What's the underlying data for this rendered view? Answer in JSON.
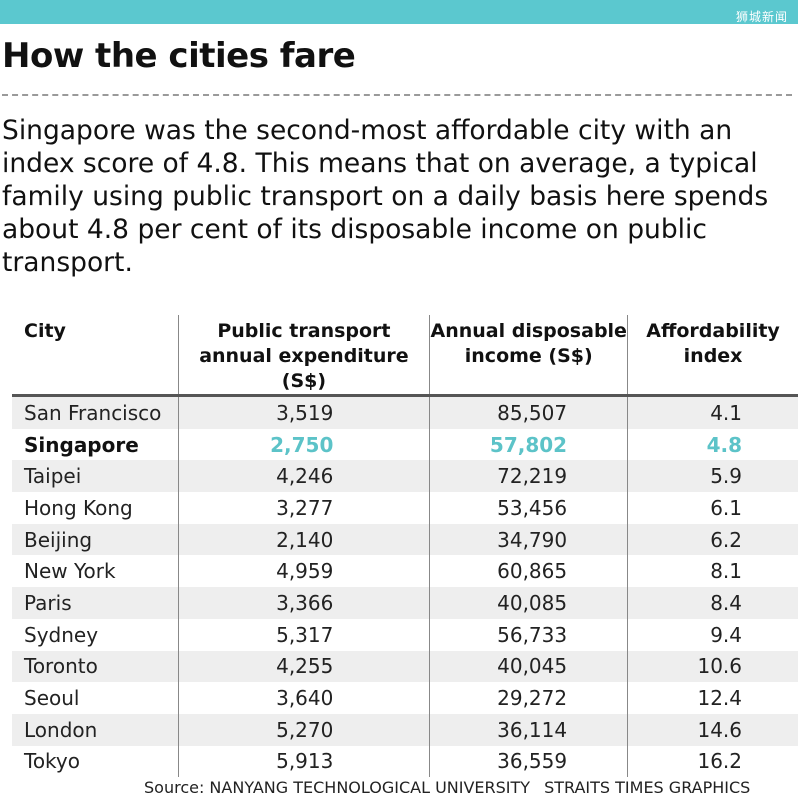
{
  "header": {
    "bar_color": "#5bc8cf",
    "watermark": "狮城新闻"
  },
  "title": "How the cities fare",
  "intro": "Singapore was the second-most affordable city with an index score of 4.8. This means that on average, a typical family using public transport on a daily basis here spends about 4.8 per cent of its disposable income on public transport.",
  "highlight_color": "#5cc3c8",
  "chart_data": {
    "type": "table",
    "columns": [
      "City",
      "Public transport annual expenditure (S$)",
      "Annual disposable income (S$)",
      "Affordability index"
    ],
    "rows": [
      {
        "city": "San Francisco",
        "expenditure": "3,519",
        "income": "85,507",
        "index": "4.1"
      },
      {
        "city": "Singapore",
        "expenditure": "2,750",
        "income": "57,802",
        "index": "4.8",
        "highlight": true
      },
      {
        "city": "Taipei",
        "expenditure": "4,246",
        "income": "72,219",
        "index": "5.9"
      },
      {
        "city": "Hong Kong",
        "expenditure": "3,277",
        "income": "53,456",
        "index": "6.1"
      },
      {
        "city": "Beijing",
        "expenditure": "2,140",
        "income": "34,790",
        "index": "6.2"
      },
      {
        "city": "New York",
        "expenditure": "4,959",
        "income": "60,865",
        "index": "8.1"
      },
      {
        "city": "Paris",
        "expenditure": "3,366",
        "income": "40,085",
        "index": "8.4"
      },
      {
        "city": "Sydney",
        "expenditure": "5,317",
        "income": "56,733",
        "index": "9.4"
      },
      {
        "city": "Toronto",
        "expenditure": "4,255",
        "income": "40,045",
        "index": "10.6"
      },
      {
        "city": "Seoul",
        "expenditure": "3,640",
        "income": "29,272",
        "index": "12.4"
      },
      {
        "city": "London",
        "expenditure": "5,270",
        "income": "36,114",
        "index": "14.6"
      },
      {
        "city": "Tokyo",
        "expenditure": "5,913",
        "income": "36,559",
        "index": "16.2"
      }
    ]
  },
  "source": {
    "left": "Source: NANYANG TECHNOLOGICAL UNIVERSITY",
    "right": "STRAITS TIMES GRAPHICS"
  }
}
